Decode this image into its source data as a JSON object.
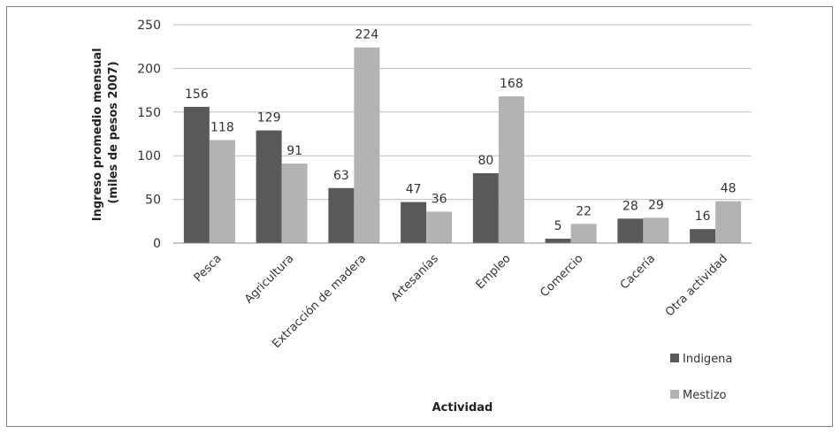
{
  "chart_data": {
    "type": "bar",
    "categories": [
      "Pesca",
      "Agricultura",
      "Extracción de madera",
      "Artesanías",
      "Empleo",
      "Comercio",
      "Cacería",
      "Otra actividad"
    ],
    "series": [
      {
        "name": "Indigena",
        "color": "#595959",
        "values": [
          156,
          129,
          63,
          47,
          80,
          5,
          28,
          16
        ]
      },
      {
        "name": "Mestizo",
        "color": "#b3b3b3",
        "values": [
          118,
          91,
          224,
          36,
          168,
          22,
          29,
          48
        ]
      }
    ],
    "xlabel": "Actividad",
    "ylabel_line1": "Ingreso promedio mensual",
    "ylabel_line2": "(miles de pesos 2007)",
    "ylim": [
      0,
      250
    ],
    "yticks": [
      0,
      50,
      100,
      150,
      200,
      250
    ],
    "grid": true,
    "legend_position": "bottom-right"
  }
}
